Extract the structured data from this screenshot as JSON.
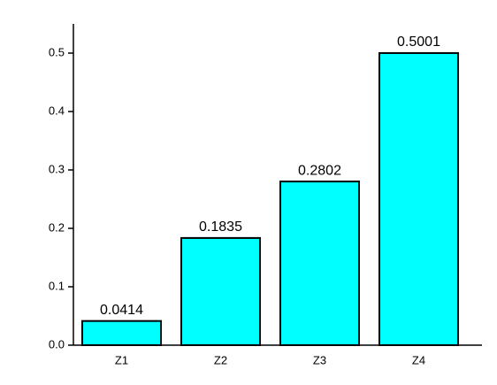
{
  "chart_data": {
    "type": "bar",
    "categories": [
      "Z1",
      "Z2",
      "Z3",
      "Z4"
    ],
    "values": [
      0.0414,
      0.1835,
      0.2802,
      0.5001
    ],
    "color": "#00ffff",
    "ylim": [
      0,
      0.55
    ],
    "yticks": [
      {
        "value": 0,
        "label": "0.0"
      },
      0.1,
      0.2,
      0.3,
      0.4,
      0.5
    ],
    "grid": false
  }
}
